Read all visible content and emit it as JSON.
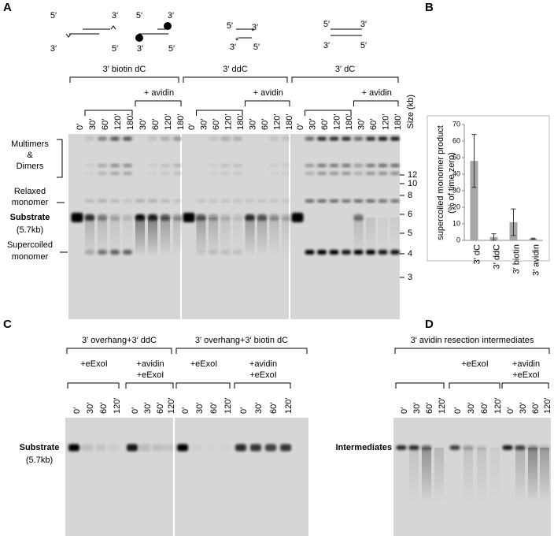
{
  "panel_labels": [
    "A",
    "B",
    "C",
    "D"
  ],
  "panel_a": {
    "schematics": [
      [
        "5′",
        "3′",
        "3′",
        "5′"
      ],
      [
        "5′",
        "3′",
        "3′",
        "5′"
      ],
      [
        "5′",
        "3′",
        "3′",
        "5′"
      ],
      [
        "5′",
        "3′",
        "3′",
        "5′"
      ]
    ],
    "groups": [
      "3′ biotin dC",
      "3′ ddC",
      "3′ dC"
    ],
    "avidin": [
      "+ avidin",
      "+ avidin",
      "+ avidin"
    ],
    "lanes": [
      [
        "0′",
        "30′",
        "60′",
        "120′",
        "180′",
        "30′",
        "60′",
        "120′",
        "180′"
      ],
      [
        "0′",
        "30′",
        "60′",
        "120′",
        "180′",
        "30′",
        "60′",
        "120′",
        "180′"
      ],
      [
        "0′",
        "30′",
        "60′",
        "120′",
        "180′",
        "30′",
        "60′",
        "120′",
        "180′"
      ]
    ],
    "size_label": "Size (kb)",
    "size_markers": [
      12,
      10,
      8,
      6,
      5,
      4,
      3
    ],
    "multimers": [
      "Multimers",
      "&",
      "Dimers"
    ],
    "relaxed": [
      "Relaxed",
      "monomer"
    ],
    "substrate": "Substrate",
    "substrate_size": "(5.7kb)",
    "supercoiled": [
      "Supercoiled",
      "monomer"
    ]
  },
  "chart_data": {
    "type": "bar",
    "y_label": [
      "supercoiled monomer product",
      "(% of time zero)"
    ],
    "categories": [
      "3′ dC",
      "3′ ddC",
      "3′ biotin",
      "3′ avidin"
    ],
    "values": [
      48,
      2,
      11,
      1
    ],
    "errors": [
      16,
      2,
      8,
      0.3
    ],
    "color": "#a6a6a6",
    "ylim": [
      0,
      70
    ],
    "yticks": [
      0,
      10,
      20,
      30,
      40,
      50,
      60,
      70
    ]
  },
  "panel_c": {
    "groups": [
      "3′ overhang+3′ ddC",
      "3′ overhang+3′ biotin dC"
    ],
    "sub_groups": [
      [
        "+eExoI"
      ],
      [
        "+avidin",
        "+eExoI"
      ],
      [
        "+eExoI"
      ],
      [
        "+avidin",
        "+eExoI"
      ]
    ],
    "lanes": [
      [
        "0′",
        "30′",
        "60′",
        "120′",
        "0′",
        "30′",
        "60′",
        "120′"
      ],
      [
        "0′",
        "30′",
        "60′",
        "120′",
        "0′",
        "30′",
        "60′",
        "120′"
      ]
    ],
    "substrate": "Substrate",
    "substrate_size": "(5.7kb)"
  },
  "panel_d": {
    "title": "3′ avidin resection intermediates",
    "sub_groups": [
      [
        "+eExoI"
      ],
      [
        "+avidin",
        "+eExoI"
      ]
    ],
    "lanes": [
      "0′",
      "30′",
      "60′",
      "120′",
      "0′",
      "30′",
      "60′",
      "120′",
      "0′",
      "30′",
      "60′",
      "120′"
    ],
    "band_label": "Intermediates"
  }
}
